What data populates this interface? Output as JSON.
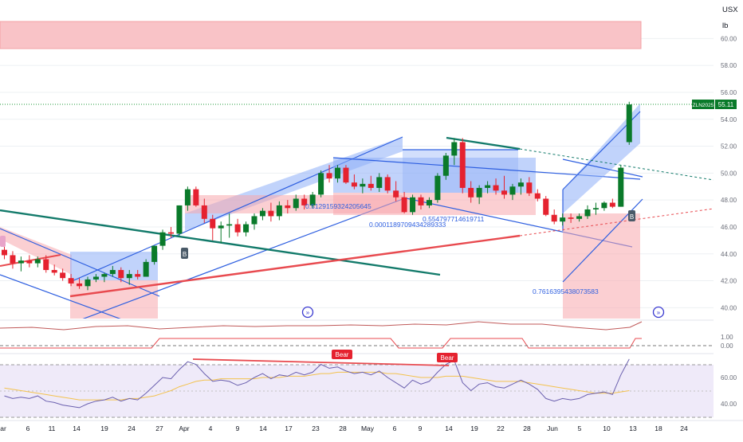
{
  "header": {
    "currency": "USX",
    "unit": "lb"
  },
  "price_axis": {
    "ticks": [
      "60.00",
      "58.00",
      "56.00",
      "54.00",
      "52.00",
      "50.00",
      "48.00",
      "46.00",
      "44.00",
      "42.00",
      "40.00"
    ]
  },
  "last_price": {
    "symbol": "ZLN2025",
    "value": "55.11"
  },
  "indicator_axis_mid": {
    "ticks": [
      "1.00",
      "0.00"
    ]
  },
  "indicator_axis_bottom": {
    "ticks": [
      "60.00",
      "40.00"
    ]
  },
  "time_axis": {
    "labels": [
      "ar",
      "6",
      "11",
      "14",
      "19",
      "24",
      "27",
      "Apr",
      "4",
      "9",
      "14",
      "17",
      "23",
      "28",
      "May",
      "6",
      "9",
      "14",
      "19",
      "22",
      "28",
      "Jun",
      "5",
      "10",
      "13",
      "18",
      "24"
    ]
  },
  "fib_labels": {
    "a": "0.5129159324205645",
    "b": "0.0001189709434289333",
    "c": "0.554797714619711",
    "d": "0.7616395438073583"
  },
  "signals": {
    "bear1": "Bear",
    "bear2": "Bear",
    "buy1": "B",
    "buy2": "B"
  },
  "colors": {
    "bull": "#089981",
    "bull_dark": "#0a7a2a",
    "bear": "#e5222f",
    "channel_blue": "#2e5fe0",
    "channel_red_fill": "#f7a7ad",
    "channel_blue_fill": "#8eaef7",
    "trend_green": "#127a6a",
    "trend_red": "#e84a4f",
    "rsi": "#6a5fae",
    "rsi_ma": "#f3c24e"
  },
  "chart_data": {
    "type": "candlestick",
    "ylim": [
      39.0,
      61.5
    ],
    "candles": [
      {
        "date": "Mar 3",
        "o": 44.3,
        "h": 44.7,
        "l": 43.6,
        "c": 43.9
      },
      {
        "date": "Mar 4",
        "o": 43.9,
        "h": 44.2,
        "l": 42.9,
        "c": 43.3
      },
      {
        "date": "Mar 5",
        "o": 43.3,
        "h": 43.8,
        "l": 42.7,
        "c": 43.5
      },
      {
        "date": "Mar 6",
        "o": 43.5,
        "h": 43.9,
        "l": 43.0,
        "c": 43.3
      },
      {
        "date": "Mar 7",
        "o": 43.3,
        "h": 43.8,
        "l": 43.0,
        "c": 43.6
      },
      {
        "date": "Mar 10",
        "o": 43.6,
        "h": 43.9,
        "l": 42.6,
        "c": 42.8
      },
      {
        "date": "Mar 11",
        "o": 42.8,
        "h": 43.2,
        "l": 42.4,
        "c": 42.6
      },
      {
        "date": "Mar 12",
        "o": 42.6,
        "h": 42.9,
        "l": 42.0,
        "c": 42.2
      },
      {
        "date": "Mar 13",
        "o": 42.2,
        "h": 42.5,
        "l": 41.6,
        "c": 41.8
      },
      {
        "date": "Mar 14",
        "o": 41.8,
        "h": 42.2,
        "l": 41.4,
        "c": 41.6
      },
      {
        "date": "Mar 17",
        "o": 41.6,
        "h": 42.3,
        "l": 41.3,
        "c": 42.1
      },
      {
        "date": "Mar 18",
        "o": 42.1,
        "h": 42.5,
        "l": 41.9,
        "c": 42.3
      },
      {
        "date": "Mar 19",
        "o": 42.3,
        "h": 42.6,
        "l": 41.9,
        "c": 42.5
      },
      {
        "date": "Mar 20",
        "o": 42.5,
        "h": 43.1,
        "l": 42.3,
        "c": 42.8
      },
      {
        "date": "Mar 21",
        "o": 42.8,
        "h": 43.0,
        "l": 41.9,
        "c": 42.2
      },
      {
        "date": "Mar 24",
        "o": 42.2,
        "h": 42.8,
        "l": 41.7,
        "c": 42.5
      },
      {
        "date": "Mar 25",
        "o": 42.5,
        "h": 42.8,
        "l": 42.1,
        "c": 42.3
      },
      {
        "date": "Mar 26",
        "o": 42.3,
        "h": 43.6,
        "l": 42.3,
        "c": 43.4
      },
      {
        "date": "Mar 27",
        "o": 43.4,
        "h": 44.6,
        "l": 43.2,
        "c": 44.6
      },
      {
        "date": "Mar 28",
        "o": 44.6,
        "h": 45.8,
        "l": 44.3,
        "c": 45.6
      },
      {
        "date": "Mar 31",
        "o": 45.6,
        "h": 46.0,
        "l": 45.2,
        "c": 45.5
      },
      {
        "date": "Apr 1",
        "o": 45.5,
        "h": 47.6,
        "l": 45.3,
        "c": 47.6
      },
      {
        "date": "Apr 2",
        "o": 47.6,
        "h": 49.0,
        "l": 47.2,
        "c": 48.8
      },
      {
        "date": "Apr 3",
        "o": 48.8,
        "h": 49.0,
        "l": 47.5,
        "c": 47.6
      },
      {
        "date": "Apr 4",
        "o": 47.6,
        "h": 48.1,
        "l": 46.3,
        "c": 46.6
      },
      {
        "date": "Apr 7",
        "o": 46.6,
        "h": 46.9,
        "l": 45.0,
        "c": 45.9
      },
      {
        "date": "Apr 8",
        "o": 45.9,
        "h": 46.4,
        "l": 44.8,
        "c": 46.1
      },
      {
        "date": "Apr 9",
        "o": 46.1,
        "h": 47.0,
        "l": 45.2,
        "c": 46.2
      },
      {
        "date": "Apr 10",
        "o": 46.2,
        "h": 46.6,
        "l": 45.3,
        "c": 45.6
      },
      {
        "date": "Apr 11",
        "o": 45.6,
        "h": 46.4,
        "l": 45.3,
        "c": 46.2
      },
      {
        "date": "Apr 14",
        "o": 46.2,
        "h": 47.0,
        "l": 45.8,
        "c": 46.8
      },
      {
        "date": "Apr 15",
        "o": 46.8,
        "h": 47.4,
        "l": 46.5,
        "c": 47.2
      },
      {
        "date": "Apr 16",
        "o": 47.2,
        "h": 47.8,
        "l": 46.4,
        "c": 46.8
      },
      {
        "date": "Apr 17",
        "o": 46.8,
        "h": 47.9,
        "l": 46.5,
        "c": 47.6
      },
      {
        "date": "Apr 21",
        "o": 47.6,
        "h": 48.0,
        "l": 47.0,
        "c": 47.4
      },
      {
        "date": "Apr 22",
        "o": 47.4,
        "h": 48.4,
        "l": 47.2,
        "c": 48.1
      },
      {
        "date": "Apr 23",
        "o": 48.1,
        "h": 48.4,
        "l": 47.3,
        "c": 47.6
      },
      {
        "date": "Apr 24",
        "o": 47.6,
        "h": 48.6,
        "l": 47.4,
        "c": 48.4
      },
      {
        "date": "Apr 25",
        "o": 48.4,
        "h": 50.2,
        "l": 48.2,
        "c": 50.0
      },
      {
        "date": "Apr 28",
        "o": 50.0,
        "h": 50.6,
        "l": 49.3,
        "c": 49.6
      },
      {
        "date": "Apr 29",
        "o": 49.6,
        "h": 50.6,
        "l": 49.3,
        "c": 50.4
      },
      {
        "date": "Apr 30",
        "o": 50.4,
        "h": 50.6,
        "l": 49.2,
        "c": 49.3
      },
      {
        "date": "May 1",
        "o": 49.3,
        "h": 49.9,
        "l": 48.8,
        "c": 49.0
      },
      {
        "date": "May 2",
        "o": 49.0,
        "h": 49.6,
        "l": 48.5,
        "c": 49.2
      },
      {
        "date": "May 5",
        "o": 49.2,
        "h": 49.8,
        "l": 48.7,
        "c": 48.9
      },
      {
        "date": "May 6",
        "o": 48.9,
        "h": 50.0,
        "l": 48.6,
        "c": 49.7
      },
      {
        "date": "May 7",
        "o": 49.7,
        "h": 49.9,
        "l": 48.5,
        "c": 48.7
      },
      {
        "date": "May 8",
        "o": 48.7,
        "h": 49.4,
        "l": 47.9,
        "c": 48.2
      },
      {
        "date": "May 9",
        "o": 48.2,
        "h": 48.6,
        "l": 47.0,
        "c": 47.1
      },
      {
        "date": "May 12",
        "o": 47.1,
        "h": 48.4,
        "l": 46.9,
        "c": 48.2
      },
      {
        "date": "May 13",
        "o": 48.2,
        "h": 48.4,
        "l": 47.3,
        "c": 47.6
      },
      {
        "date": "May 14",
        "o": 47.6,
        "h": 48.2,
        "l": 47.4,
        "c": 48.0
      },
      {
        "date": "May 15",
        "o": 48.0,
        "h": 50.0,
        "l": 47.8,
        "c": 49.8
      },
      {
        "date": "May 16",
        "o": 49.8,
        "h": 51.5,
        "l": 49.5,
        "c": 51.3
      },
      {
        "date": "May 19",
        "o": 51.3,
        "h": 52.6,
        "l": 50.6,
        "c": 52.3
      },
      {
        "date": "May 20",
        "o": 52.3,
        "h": 52.6,
        "l": 48.5,
        "c": 48.9
      },
      {
        "date": "May 21",
        "o": 48.9,
        "h": 49.4,
        "l": 47.8,
        "c": 48.2
      },
      {
        "date": "May 22",
        "o": 48.2,
        "h": 49.1,
        "l": 47.7,
        "c": 48.9
      },
      {
        "date": "May 23",
        "o": 48.9,
        "h": 49.4,
        "l": 48.5,
        "c": 49.1
      },
      {
        "date": "May 27",
        "o": 49.1,
        "h": 49.6,
        "l": 48.4,
        "c": 48.7
      },
      {
        "date": "May 28",
        "o": 48.7,
        "h": 49.8,
        "l": 48.1,
        "c": 48.4
      },
      {
        "date": "May 29",
        "o": 48.4,
        "h": 49.2,
        "l": 48.0,
        "c": 49.0
      },
      {
        "date": "May 30",
        "o": 49.0,
        "h": 49.6,
        "l": 48.4,
        "c": 49.3
      },
      {
        "date": "Jun 2",
        "o": 49.3,
        "h": 49.7,
        "l": 48.3,
        "c": 48.5
      },
      {
        "date": "Jun 3",
        "o": 48.5,
        "h": 48.8,
        "l": 47.9,
        "c": 48.1
      },
      {
        "date": "Jun 4",
        "o": 48.1,
        "h": 48.3,
        "l": 46.8,
        "c": 46.9
      },
      {
        "date": "Jun 5",
        "o": 46.9,
        "h": 47.3,
        "l": 46.2,
        "c": 46.4
      },
      {
        "date": "Jun 6",
        "o": 46.4,
        "h": 47.0,
        "l": 46.1,
        "c": 46.7
      },
      {
        "date": "Jun 9",
        "o": 46.7,
        "h": 47.0,
        "l": 46.3,
        "c": 46.6
      },
      {
        "date": "Jun 10",
        "o": 46.6,
        "h": 47.0,
        "l": 46.4,
        "c": 46.8
      },
      {
        "date": "Jun 11",
        "o": 46.8,
        "h": 47.6,
        "l": 46.6,
        "c": 47.3
      },
      {
        "date": "Jun 12",
        "o": 47.3,
        "h": 47.8,
        "l": 46.9,
        "c": 47.4
      },
      {
        "date": "Jun 13",
        "o": 47.4,
        "h": 47.9,
        "l": 47.2,
        "c": 47.8
      },
      {
        "date": "Jun 16",
        "o": 47.8,
        "h": 48.1,
        "l": 47.4,
        "c": 47.5
      },
      {
        "date": "Jun 17",
        "o": 47.5,
        "h": 50.6,
        "l": 47.5,
        "c": 50.4
      },
      {
        "date": "Jun 18",
        "o": 52.3,
        "h": 55.3,
        "l": 52.1,
        "c": 55.1
      }
    ],
    "rsi": [
      46,
      44,
      45,
      44,
      46,
      42,
      41,
      39,
      38,
      37,
      40,
      42,
      43,
      45,
      42,
      44,
      43,
      48,
      54,
      60,
      59,
      66,
      72,
      70,
      63,
      57,
      58,
      57,
      54,
      56,
      60,
      63,
      59,
      62,
      61,
      64,
      62,
      64,
      70,
      67,
      68,
      65,
      63,
      64,
      62,
      65,
      60,
      56,
      52,
      58,
      55,
      57,
      64,
      70,
      73,
      56,
      50,
      55,
      56,
      53,
      52,
      55,
      58,
      55,
      51,
      44,
      42,
      44,
      43,
      44,
      47,
      48,
      49,
      47,
      62,
      74
    ],
    "rsi_ma": [
      52,
      51,
      50,
      49,
      48,
      47,
      46,
      45,
      44,
      43,
      43,
      43,
      43,
      43,
      43,
      44,
      44,
      45,
      46,
      48,
      50,
      53,
      55,
      57,
      58,
      58,
      59,
      59,
      59,
      59,
      59,
      60,
      60,
      60,
      61,
      61,
      61,
      62,
      63,
      63,
      64,
      64,
      64,
      64,
      64,
      64,
      63,
      63,
      62,
      61,
      60,
      60,
      60,
      61,
      61,
      61,
      60,
      59,
      58,
      57,
      57,
      57,
      57,
      56,
      55,
      54,
      53,
      52,
      51,
      50,
      49,
      48,
      48,
      48,
      49,
      50
    ]
  }
}
